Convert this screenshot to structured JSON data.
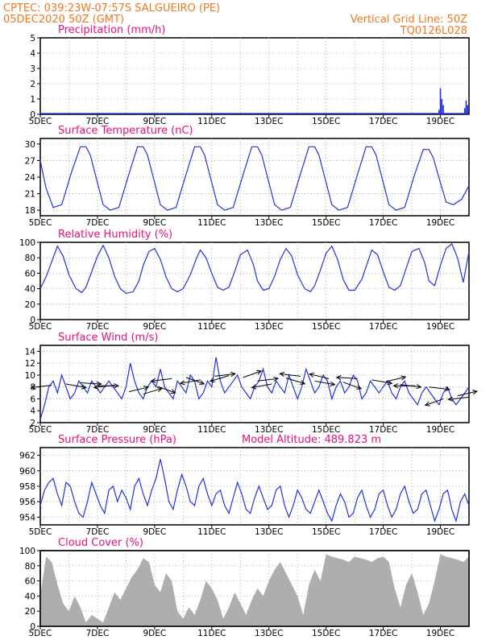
{
  "header": {
    "line1": "CPTEC:   039:23W-07:57S   SALGUEIRO (PE)",
    "line2": "05DEC2020 50Z (GMT)",
    "right1": "Vertical Grid Line: 50Z",
    "right2": "TQ0126L028"
  },
  "colors": {
    "header": "#f07820",
    "title": "#e8107a",
    "line": "#2233dd",
    "cloud": "#a8a8a8",
    "grid": "#9a9a9a"
  },
  "x_axis": {
    "labels": [
      "5DEC",
      "7DEC",
      "9DEC",
      "11DEC",
      "13DEC",
      "15DEC",
      "17DEC",
      "19DEC"
    ],
    "label_days": [
      5,
      7,
      9,
      11,
      13,
      15,
      17,
      19
    ],
    "range_days": [
      5,
      20
    ]
  },
  "chart_data": [
    {
      "type": "bar",
      "title": "Precipitation (mm/h)",
      "ylim": [
        0,
        5
      ],
      "yticks": [
        0,
        1,
        2,
        3,
        4,
        5
      ],
      "x_days": [
        5.2,
        5.8,
        6.6,
        7.5,
        8.4,
        9.0,
        10.1,
        11.5,
        12.5,
        13.6,
        14.7,
        15.9,
        17.2,
        18.2,
        18.95,
        19.0,
        19.05,
        19.1,
        19.85,
        19.9,
        19.95
      ],
      "values": [
        0.05,
        0.05,
        0.05,
        0.05,
        0.05,
        0.05,
        0.05,
        0.05,
        0.05,
        0.05,
        0.05,
        0.05,
        0.05,
        0.05,
        0.3,
        1.7,
        1.0,
        0.6,
        0.4,
        0.9,
        0.6
      ]
    },
    {
      "type": "line",
      "title": "Surface Temperature (nC)",
      "ylim": [
        17,
        31
      ],
      "yticks": [
        18,
        21,
        24,
        27,
        30
      ],
      "x_days": [
        5.0,
        5.2,
        5.45,
        5.75,
        6.1,
        6.4,
        6.6,
        6.75,
        7.0,
        7.2,
        7.45,
        7.75,
        8.1,
        8.4,
        8.6,
        8.75,
        9.0,
        9.2,
        9.45,
        9.75,
        10.1,
        10.4,
        10.6,
        10.75,
        11.0,
        11.2,
        11.45,
        11.75,
        12.1,
        12.4,
        12.6,
        12.75,
        13.0,
        13.2,
        13.45,
        13.75,
        14.1,
        14.4,
        14.6,
        14.75,
        15.0,
        15.2,
        15.45,
        15.75,
        16.1,
        16.4,
        16.6,
        16.75,
        17.0,
        17.2,
        17.45,
        17.75,
        18.1,
        18.4,
        18.6,
        18.75,
        19.0,
        19.2,
        19.45,
        19.75,
        20.0
      ],
      "values": [
        27.0,
        22.0,
        18.5,
        19.0,
        25.0,
        29.5,
        29.5,
        28.0,
        23.0,
        19.0,
        18.0,
        18.5,
        24.5,
        29.5,
        29.5,
        28.0,
        23.0,
        19.0,
        18.0,
        18.5,
        24.5,
        29.5,
        29.5,
        28.0,
        23.0,
        19.0,
        18.0,
        18.5,
        24.5,
        29.5,
        29.5,
        28.0,
        23.0,
        19.0,
        18.0,
        18.5,
        24.5,
        29.5,
        29.5,
        28.0,
        23.0,
        19.0,
        18.0,
        18.5,
        24.5,
        29.5,
        29.5,
        28.0,
        23.0,
        19.0,
        18.0,
        18.5,
        24.5,
        29.0,
        29.0,
        27.5,
        23.0,
        19.5,
        19.0,
        20.0,
        22.5
      ]
    },
    {
      "type": "line",
      "title": "Relative Humidity (%)",
      "ylim": [
        0,
        100
      ],
      "yticks": [
        0,
        20,
        40,
        60,
        80,
        100
      ],
      "x_days": [
        5.0,
        5.2,
        5.4,
        5.6,
        5.8,
        6.0,
        6.25,
        6.45,
        6.6,
        6.8,
        7.0,
        7.2,
        7.4,
        7.6,
        7.8,
        8.0,
        8.25,
        8.45,
        8.6,
        8.8,
        9.0,
        9.2,
        9.4,
        9.6,
        9.8,
        10.0,
        10.25,
        10.45,
        10.6,
        10.8,
        11.0,
        11.2,
        11.4,
        11.6,
        11.8,
        12.0,
        12.25,
        12.45,
        12.6,
        12.8,
        13.0,
        13.2,
        13.4,
        13.6,
        13.8,
        14.0,
        14.25,
        14.45,
        14.6,
        14.8,
        15.0,
        15.2,
        15.4,
        15.6,
        15.8,
        16.0,
        16.25,
        16.45,
        16.6,
        16.8,
        17.0,
        17.2,
        17.4,
        17.6,
        17.8,
        18.0,
        18.25,
        18.45,
        18.6,
        18.8,
        19.0,
        19.2,
        19.4,
        19.6,
        19.8,
        20.0
      ],
      "values": [
        40,
        55,
        75,
        95,
        82,
        58,
        40,
        35,
        42,
        62,
        82,
        96,
        80,
        56,
        40,
        34,
        36,
        50,
        70,
        88,
        92,
        78,
        55,
        40,
        36,
        40,
        58,
        78,
        90,
        80,
        60,
        42,
        38,
        42,
        62,
        84,
        90,
        72,
        50,
        38,
        40,
        56,
        78,
        92,
        82,
        58,
        40,
        36,
        44,
        64,
        86,
        95,
        78,
        52,
        38,
        38,
        52,
        74,
        90,
        84,
        62,
        42,
        38,
        44,
        66,
        88,
        92,
        74,
        50,
        44,
        70,
        92,
        98,
        80,
        48,
        88
      ]
    },
    {
      "type": "line",
      "title": "Surface Wind (m/s)",
      "ylim": [
        2,
        15
      ],
      "yticks": [
        2,
        4,
        6,
        8,
        10,
        12,
        14
      ],
      "x_days": [
        5.0,
        5.15,
        5.3,
        5.45,
        5.6,
        5.75,
        5.9,
        6.05,
        6.2,
        6.35,
        6.5,
        6.65,
        6.8,
        6.95,
        7.1,
        7.25,
        7.4,
        7.55,
        7.7,
        7.85,
        8.0,
        8.15,
        8.3,
        8.45,
        8.6,
        8.75,
        8.9,
        9.05,
        9.2,
        9.35,
        9.5,
        9.65,
        9.8,
        9.95,
        10.1,
        10.25,
        10.4,
        10.55,
        10.7,
        10.85,
        11.0,
        11.15,
        11.3,
        11.45,
        11.6,
        11.75,
        11.9,
        12.05,
        12.2,
        12.35,
        12.5,
        12.65,
        12.8,
        12.95,
        13.1,
        13.25,
        13.4,
        13.55,
        13.7,
        13.85,
        14.0,
        14.15,
        14.3,
        14.45,
        14.6,
        14.75,
        14.9,
        15.05,
        15.2,
        15.35,
        15.5,
        15.65,
        15.8,
        15.95,
        16.1,
        16.25,
        16.4,
        16.55,
        16.7,
        16.85,
        17.0,
        17.15,
        17.3,
        17.45,
        17.6,
        17.75,
        17.9,
        18.05,
        18.2,
        18.35,
        18.5,
        18.65,
        18.8,
        18.95,
        19.1,
        19.25,
        19.4,
        19.55,
        19.7,
        19.85,
        20.0
      ],
      "values": [
        2.5,
        5,
        8,
        9,
        7,
        10,
        8,
        6,
        7,
        9,
        8,
        7,
        9,
        8,
        7,
        8,
        9,
        8,
        7,
        6,
        8,
        12,
        9,
        7,
        6,
        8,
        9,
        8,
        11,
        8,
        7,
        6,
        9,
        8,
        7,
        10,
        9,
        6,
        7,
        9,
        8,
        13,
        9,
        7,
        8,
        9,
        10,
        8,
        7,
        6,
        8,
        9,
        11,
        8,
        7,
        9,
        8,
        7,
        10,
        8,
        6,
        8,
        11,
        9,
        7,
        8,
        10,
        9,
        6,
        8,
        9,
        7,
        8,
        10,
        9,
        6,
        7,
        9,
        8,
        7,
        8,
        9,
        7,
        6,
        8,
        9,
        7,
        6,
        5,
        7,
        8,
        7,
        6,
        5,
        7,
        8,
        6,
        5,
        6,
        7,
        8
      ],
      "arrows": {
        "days": [
          5.4,
          5.9,
          6.4,
          7.0,
          7.6,
          8.1,
          8.6,
          9.1,
          9.6,
          10.1,
          10.6,
          11.1,
          11.6,
          12.1,
          12.6,
          13.1,
          13.6,
          14.1,
          14.6,
          15.1,
          15.6,
          16.1,
          16.6,
          17.1,
          17.6,
          18.1,
          18.6,
          19.1,
          19.6,
          20.0
        ],
        "speeds": [
          8.3,
          8.5,
          8.7,
          8.2,
          8.3,
          7.2,
          6.8,
          8.1,
          9.4,
          9.6,
          9.2,
          9.8,
          9.9,
          9.6,
          9.0,
          8.5,
          9.5,
          9.8,
          9.0,
          9.4,
          8.8,
          9.4,
          9.2,
          8.9,
          8.4,
          8.2,
          8.0,
          6.0,
          6.5,
          6.3
        ],
        "dx": [
          -1,
          1,
          1,
          1,
          -1,
          1,
          1,
          1,
          -1,
          1,
          -1,
          1,
          -1,
          1,
          1,
          -1,
          1,
          -1,
          1,
          -1,
          1,
          -1,
          1,
          1,
          1,
          -1,
          1,
          -1,
          1,
          -1
        ],
        "dy": [
          0.2,
          0.3,
          0.1,
          0.0,
          0.2,
          -0.4,
          -0.5,
          0.6,
          0.2,
          0.6,
          0.3,
          -0.2,
          0.5,
          -0.6,
          -0.2,
          0.3,
          0.5,
          -0.2,
          0.3,
          -0.4,
          0.6,
          -0.1,
          0.3,
          -0.4,
          0.2,
          0.0,
          0.2,
          0.6,
          -0.4,
          0.2
        ]
      }
    },
    {
      "type": "line",
      "title": "Surface Pressure (hPa)",
      "subtitle": "Model Altitude: 489.823 m",
      "ylim": [
        953,
        963
      ],
      "yticks": [
        954,
        956,
        958,
        960,
        962
      ],
      "x_days": [
        5.0,
        5.15,
        5.3,
        5.45,
        5.6,
        5.75,
        5.9,
        6.05,
        6.2,
        6.35,
        6.5,
        6.65,
        6.8,
        6.95,
        7.1,
        7.25,
        7.4,
        7.55,
        7.7,
        7.85,
        8.0,
        8.15,
        8.3,
        8.45,
        8.6,
        8.75,
        8.9,
        9.05,
        9.2,
        9.35,
        9.5,
        9.65,
        9.8,
        9.95,
        10.1,
        10.25,
        10.4,
        10.55,
        10.7,
        10.85,
        11.0,
        11.15,
        11.3,
        11.45,
        11.6,
        11.75,
        11.9,
        12.05,
        12.2,
        12.35,
        12.5,
        12.65,
        12.8,
        12.95,
        13.1,
        13.25,
        13.4,
        13.55,
        13.7,
        13.85,
        14.0,
        14.15,
        14.3,
        14.45,
        14.6,
        14.75,
        14.9,
        15.05,
        15.2,
        15.35,
        15.5,
        15.65,
        15.8,
        15.95,
        16.1,
        16.25,
        16.4,
        16.55,
        16.7,
        16.85,
        17.0,
        17.15,
        17.3,
        17.45,
        17.6,
        17.75,
        17.9,
        18.05,
        18.2,
        18.35,
        18.5,
        18.65,
        18.8,
        18.95,
        19.1,
        19.25,
        19.4,
        19.55,
        19.7,
        19.85,
        20.0
      ],
      "values": [
        955.5,
        957.5,
        958.5,
        959.0,
        957.0,
        955.5,
        958.5,
        958.0,
        956.0,
        954.5,
        954.0,
        956.0,
        958.5,
        957.0,
        955.5,
        954.5,
        957.5,
        958.0,
        956.0,
        957.5,
        956.5,
        955.0,
        958.0,
        959.0,
        957.0,
        955.5,
        957.5,
        959.0,
        961.5,
        959.0,
        956.0,
        955.0,
        957.5,
        959.5,
        958.0,
        956.0,
        955.5,
        958.0,
        959.0,
        957.0,
        955.5,
        957.0,
        957.5,
        955.5,
        954.5,
        956.5,
        958.5,
        957.0,
        955.0,
        954.5,
        956.5,
        958.0,
        956.5,
        955.0,
        955.5,
        957.5,
        958.0,
        955.5,
        954.0,
        955.5,
        957.5,
        956.5,
        955.0,
        954.5,
        956.0,
        957.5,
        956.0,
        954.5,
        953.5,
        955.5,
        957.0,
        956.0,
        954.0,
        954.5,
        956.5,
        957.5,
        955.5,
        954.0,
        955.0,
        957.0,
        957.5,
        955.5,
        954.0,
        955.0,
        957.0,
        958.0,
        956.0,
        954.5,
        955.0,
        957.0,
        957.5,
        955.5,
        953.5,
        955.0,
        957.0,
        957.5,
        955.0,
        953.5,
        956.0,
        957.0,
        955.5
      ]
    },
    {
      "type": "area",
      "title": "Cloud Cover (%)",
      "ylim": [
        0,
        100
      ],
      "yticks": [
        0,
        20,
        40,
        60,
        80,
        100
      ],
      "x_days": [
        5.0,
        5.2,
        5.4,
        5.6,
        5.8,
        6.0,
        6.2,
        6.4,
        6.6,
        6.8,
        7.0,
        7.2,
        7.4,
        7.6,
        7.8,
        8.0,
        8.2,
        8.4,
        8.6,
        8.8,
        9.0,
        9.2,
        9.4,
        9.6,
        9.8,
        10.0,
        10.2,
        10.4,
        10.6,
        10.8,
        11.0,
        11.2,
        11.4,
        11.6,
        11.8,
        12.0,
        12.2,
        12.4,
        12.6,
        12.8,
        13.0,
        13.2,
        13.4,
        13.6,
        13.8,
        14.0,
        14.2,
        14.4,
        14.6,
        14.8,
        15.0,
        15.2,
        15.4,
        15.6,
        15.8,
        16.0,
        16.2,
        16.4,
        16.6,
        16.8,
        17.0,
        17.2,
        17.4,
        17.6,
        17.8,
        18.0,
        18.2,
        18.4,
        18.6,
        18.8,
        19.0,
        19.2,
        19.4,
        19.6,
        19.8,
        20.0
      ],
      "values": [
        40,
        92,
        85,
        55,
        30,
        20,
        40,
        25,
        5,
        15,
        10,
        5,
        25,
        45,
        35,
        50,
        65,
        75,
        90,
        85,
        55,
        45,
        70,
        60,
        20,
        10,
        25,
        15,
        35,
        60,
        50,
        35,
        10,
        25,
        45,
        30,
        15,
        35,
        50,
        40,
        60,
        75,
        85,
        70,
        55,
        40,
        15,
        55,
        75,
        60,
        95,
        92,
        90,
        88,
        85,
        92,
        90,
        88,
        85,
        90,
        92,
        85,
        50,
        25,
        55,
        70,
        45,
        15,
        30,
        60,
        95,
        92,
        90,
        88,
        85,
        92
      ]
    }
  ]
}
